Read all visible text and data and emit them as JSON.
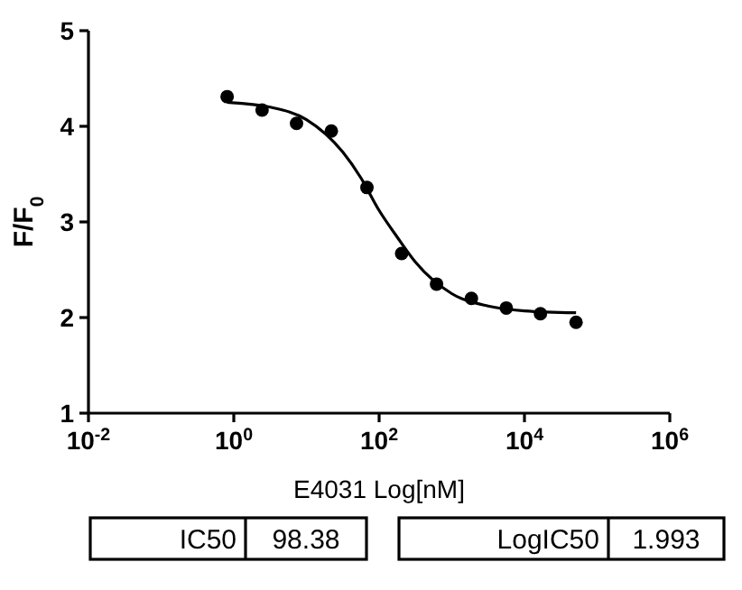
{
  "chart_data": {
    "type": "scatter",
    "xlabel": "E4031 Log[nM]",
    "ylabel": "F/F$_{0}$",
    "log": "x",
    "xlim": [
      0.01,
      1000000
    ],
    "ylim": [
      1,
      5
    ],
    "xticks": [
      {
        "value": 0.01,
        "label": "10$^{-2}$"
      },
      {
        "value": 1,
        "label": "10$^{0}$"
      },
      {
        "value": 100,
        "label": "10$^{2}$"
      },
      {
        "value": 10000,
        "label": "10$^{4}$"
      },
      {
        "value": 1000000,
        "label": "10$^{6}$"
      }
    ],
    "yticks": [
      1,
      2,
      3,
      4,
      5
    ],
    "grid": false,
    "marker": "circle",
    "series": [
      {
        "color": "#000000",
        "x": [
          0.81,
          2.45,
          7.3,
          22,
          68,
          204,
          617,
          1862,
          5623,
          16600,
          51300
        ],
        "values": [
          4.31,
          4.17,
          4.03,
          3.95,
          3.36,
          2.67,
          2.35,
          2.2,
          2.1,
          2.04,
          1.95
        ]
      },
      {
        "type": "line",
        "color": "#000000",
        "line_style": "solid",
        "marker": "none",
        "x": [
          0.81,
          3.16,
          10,
          31.6,
          56.2,
          100,
          178,
          316,
          1000,
          3162,
          10000,
          51300
        ],
        "values": [
          4.25,
          4.2,
          4.07,
          3.73,
          3.46,
          3.12,
          2.84,
          2.58,
          2.25,
          2.12,
          2.07,
          2.05
        ]
      }
    ],
    "annotations": [
      "IC50",
      "98.38",
      "LogIC50",
      "1.993"
    ]
  }
}
